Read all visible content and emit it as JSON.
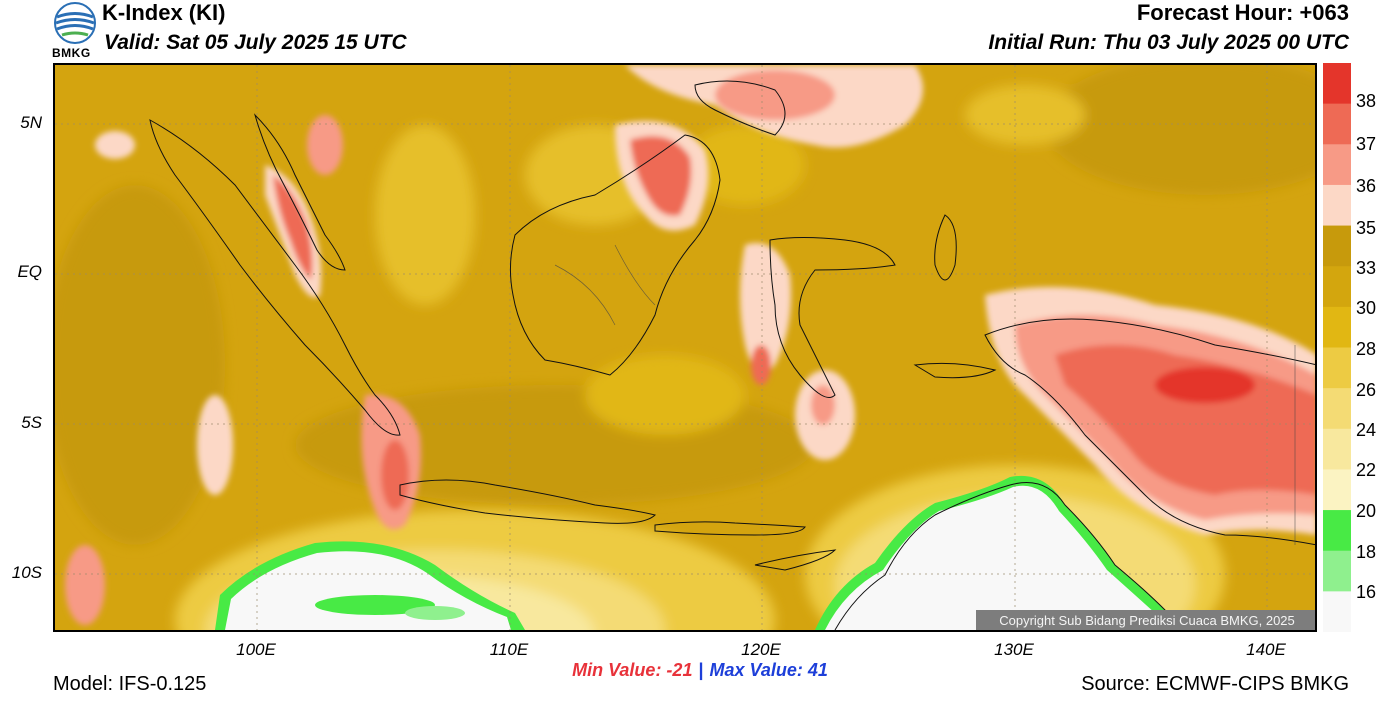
{
  "header": {
    "logo_text": "BMKG",
    "title": "K-Index (KI)",
    "valid": "Valid: Sat 05 July 2025 15 UTC",
    "forecast_hour": "Forecast Hour: +063",
    "initial_run": "Initial Run: Thu 03 July 2025 00 UTC"
  },
  "map": {
    "lat_labels": [
      "5N",
      "EQ",
      "5S",
      "10S"
    ],
    "lon_labels": [
      "100E",
      "110E",
      "120E",
      "130E",
      "140E"
    ],
    "copyright": "Copyright Sub Bidang Prediksi Cuaca BMKG, 2025"
  },
  "colorbar": {
    "labels": [
      "38",
      "37",
      "36",
      "35",
      "33",
      "30",
      "28",
      "26",
      "24",
      "22",
      "20",
      "18",
      "16"
    ],
    "colors": [
      "#e4352b",
      "#ee6a55",
      "#f79a86",
      "#fcd8c6",
      "#c79a0c",
      "#d3a60e",
      "#e1b713",
      "#edcb43",
      "#f4db74",
      "#f8e89e",
      "#fbf3c2",
      "#48ea45",
      "#8ff08e",
      "#f8f8f8"
    ]
  },
  "stats": {
    "min_label": "Min Value: -21",
    "separator": "|",
    "max_label": "Max Value:  41"
  },
  "footer": {
    "model": "Model: IFS-0.125",
    "source": "Source: ECMWF-CIPS BMKG"
  }
}
